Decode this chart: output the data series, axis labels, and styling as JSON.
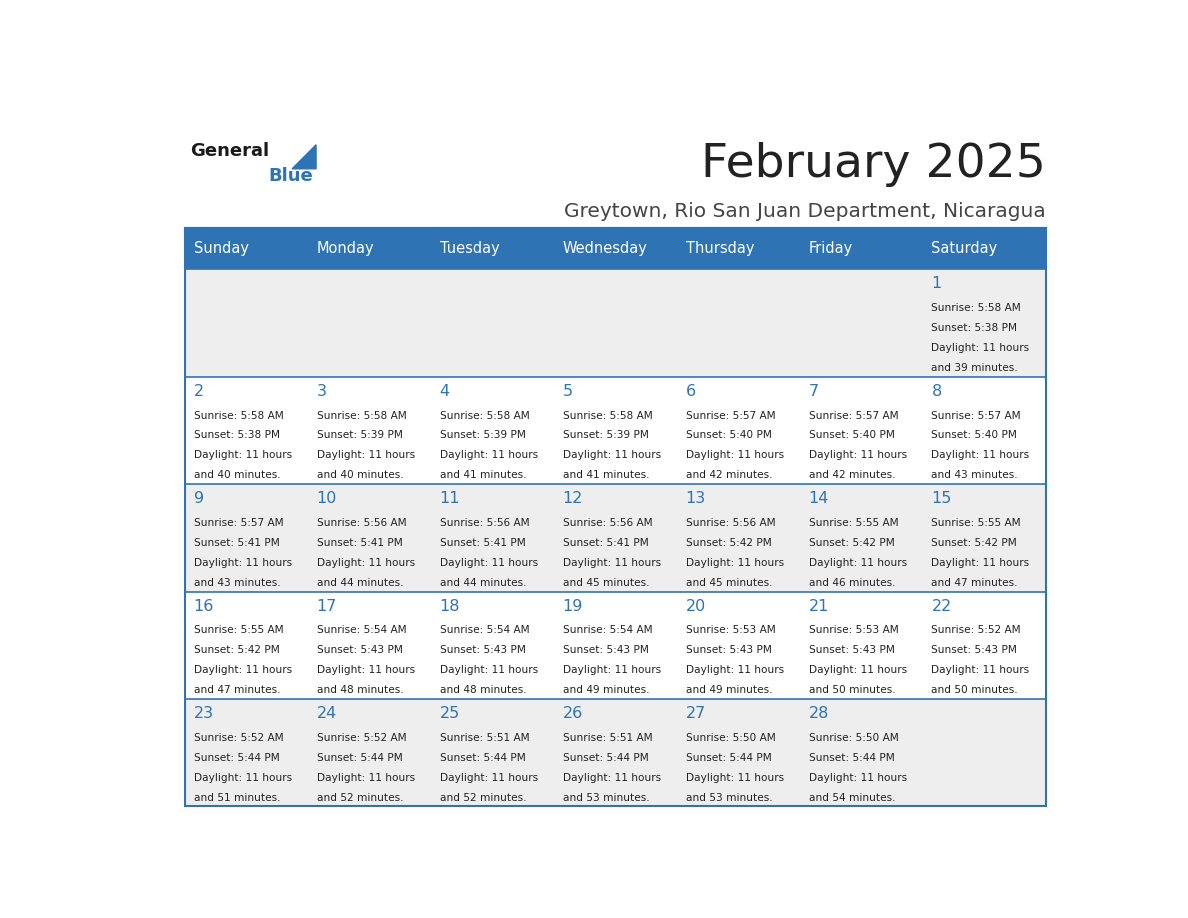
{
  "title": "February 2025",
  "subtitle": "Greytown, Rio San Juan Department, Nicaragua",
  "days_of_week": [
    "Sunday",
    "Monday",
    "Tuesday",
    "Wednesday",
    "Thursday",
    "Friday",
    "Saturday"
  ],
  "header_bg": "#2E74B5",
  "header_text": "#FFFFFF",
  "row_bg_odd": "#EEEEEE",
  "row_bg_even": "#FFFFFF",
  "cell_border": "#2E74B5",
  "day_number_color": "#2E74B5",
  "info_text_color": "#222222",
  "title_color": "#222222",
  "subtitle_color": "#444444",
  "logo_general_color": "#1a1a1a",
  "logo_blue_color": "#2E74B5",
  "background": "#FFFFFF",
  "calendar_data": [
    [
      null,
      null,
      null,
      null,
      null,
      null,
      {
        "day": 1,
        "sunrise": "5:58 AM",
        "sunset": "5:38 PM",
        "daylight_line1": "Daylight: 11 hours",
        "daylight_line2": "and 39 minutes."
      }
    ],
    [
      {
        "day": 2,
        "sunrise": "5:58 AM",
        "sunset": "5:38 PM",
        "daylight_line1": "Daylight: 11 hours",
        "daylight_line2": "and 40 minutes."
      },
      {
        "day": 3,
        "sunrise": "5:58 AM",
        "sunset": "5:39 PM",
        "daylight_line1": "Daylight: 11 hours",
        "daylight_line2": "and 40 minutes."
      },
      {
        "day": 4,
        "sunrise": "5:58 AM",
        "sunset": "5:39 PM",
        "daylight_line1": "Daylight: 11 hours",
        "daylight_line2": "and 41 minutes."
      },
      {
        "day": 5,
        "sunrise": "5:58 AM",
        "sunset": "5:39 PM",
        "daylight_line1": "Daylight: 11 hours",
        "daylight_line2": "and 41 minutes."
      },
      {
        "day": 6,
        "sunrise": "5:57 AM",
        "sunset": "5:40 PM",
        "daylight_line1": "Daylight: 11 hours",
        "daylight_line2": "and 42 minutes."
      },
      {
        "day": 7,
        "sunrise": "5:57 AM",
        "sunset": "5:40 PM",
        "daylight_line1": "Daylight: 11 hours",
        "daylight_line2": "and 42 minutes."
      },
      {
        "day": 8,
        "sunrise": "5:57 AM",
        "sunset": "5:40 PM",
        "daylight_line1": "Daylight: 11 hours",
        "daylight_line2": "and 43 minutes."
      }
    ],
    [
      {
        "day": 9,
        "sunrise": "5:57 AM",
        "sunset": "5:41 PM",
        "daylight_line1": "Daylight: 11 hours",
        "daylight_line2": "and 43 minutes."
      },
      {
        "day": 10,
        "sunrise": "5:56 AM",
        "sunset": "5:41 PM",
        "daylight_line1": "Daylight: 11 hours",
        "daylight_line2": "and 44 minutes."
      },
      {
        "day": 11,
        "sunrise": "5:56 AM",
        "sunset": "5:41 PM",
        "daylight_line1": "Daylight: 11 hours",
        "daylight_line2": "and 44 minutes."
      },
      {
        "day": 12,
        "sunrise": "5:56 AM",
        "sunset": "5:41 PM",
        "daylight_line1": "Daylight: 11 hours",
        "daylight_line2": "and 45 minutes."
      },
      {
        "day": 13,
        "sunrise": "5:56 AM",
        "sunset": "5:42 PM",
        "daylight_line1": "Daylight: 11 hours",
        "daylight_line2": "and 45 minutes."
      },
      {
        "day": 14,
        "sunrise": "5:55 AM",
        "sunset": "5:42 PM",
        "daylight_line1": "Daylight: 11 hours",
        "daylight_line2": "and 46 minutes."
      },
      {
        "day": 15,
        "sunrise": "5:55 AM",
        "sunset": "5:42 PM",
        "daylight_line1": "Daylight: 11 hours",
        "daylight_line2": "and 47 minutes."
      }
    ],
    [
      {
        "day": 16,
        "sunrise": "5:55 AM",
        "sunset": "5:42 PM",
        "daylight_line1": "Daylight: 11 hours",
        "daylight_line2": "and 47 minutes."
      },
      {
        "day": 17,
        "sunrise": "5:54 AM",
        "sunset": "5:43 PM",
        "daylight_line1": "Daylight: 11 hours",
        "daylight_line2": "and 48 minutes."
      },
      {
        "day": 18,
        "sunrise": "5:54 AM",
        "sunset": "5:43 PM",
        "daylight_line1": "Daylight: 11 hours",
        "daylight_line2": "and 48 minutes."
      },
      {
        "day": 19,
        "sunrise": "5:54 AM",
        "sunset": "5:43 PM",
        "daylight_line1": "Daylight: 11 hours",
        "daylight_line2": "and 49 minutes."
      },
      {
        "day": 20,
        "sunrise": "5:53 AM",
        "sunset": "5:43 PM",
        "daylight_line1": "Daylight: 11 hours",
        "daylight_line2": "and 49 minutes."
      },
      {
        "day": 21,
        "sunrise": "5:53 AM",
        "sunset": "5:43 PM",
        "daylight_line1": "Daylight: 11 hours",
        "daylight_line2": "and 50 minutes."
      },
      {
        "day": 22,
        "sunrise": "5:52 AM",
        "sunset": "5:43 PM",
        "daylight_line1": "Daylight: 11 hours",
        "daylight_line2": "and 50 minutes."
      }
    ],
    [
      {
        "day": 23,
        "sunrise": "5:52 AM",
        "sunset": "5:44 PM",
        "daylight_line1": "Daylight: 11 hours",
        "daylight_line2": "and 51 minutes."
      },
      {
        "day": 24,
        "sunrise": "5:52 AM",
        "sunset": "5:44 PM",
        "daylight_line1": "Daylight: 11 hours",
        "daylight_line2": "and 52 minutes."
      },
      {
        "day": 25,
        "sunrise": "5:51 AM",
        "sunset": "5:44 PM",
        "daylight_line1": "Daylight: 11 hours",
        "daylight_line2": "and 52 minutes."
      },
      {
        "day": 26,
        "sunrise": "5:51 AM",
        "sunset": "5:44 PM",
        "daylight_line1": "Daylight: 11 hours",
        "daylight_line2": "and 53 minutes."
      },
      {
        "day": 27,
        "sunrise": "5:50 AM",
        "sunset": "5:44 PM",
        "daylight_line1": "Daylight: 11 hours",
        "daylight_line2": "and 53 minutes."
      },
      {
        "day": 28,
        "sunrise": "5:50 AM",
        "sunset": "5:44 PM",
        "daylight_line1": "Daylight: 11 hours",
        "daylight_line2": "and 54 minutes."
      },
      null
    ]
  ]
}
